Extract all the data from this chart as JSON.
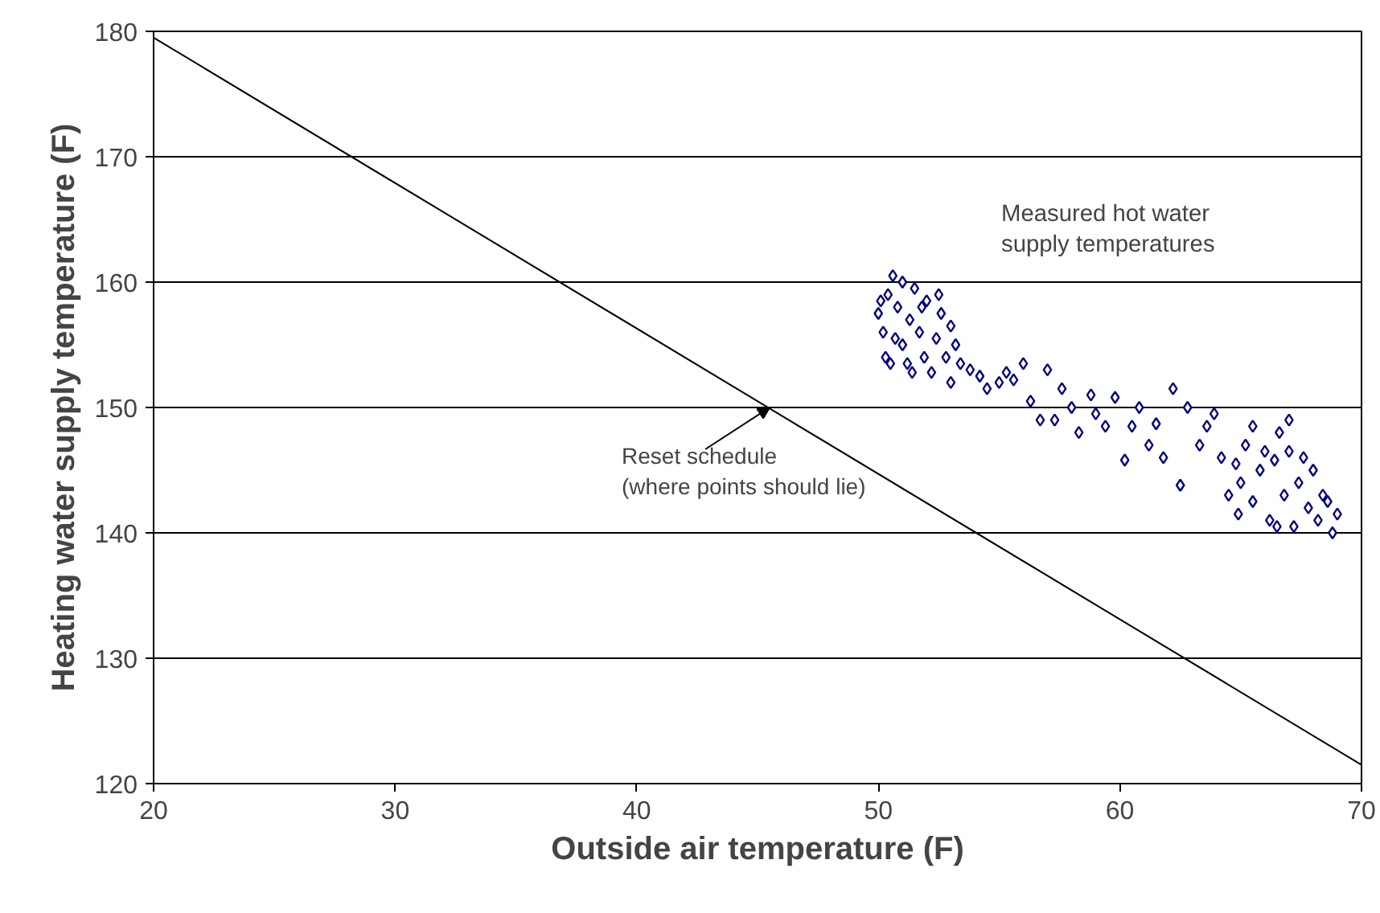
{
  "chart_data": {
    "type": "scatter",
    "xlabel": "Outside air temperature (F)",
    "ylabel": "Heating water supply temperature (F)",
    "xlim": [
      20,
      70
    ],
    "xticks": [
      20,
      30,
      40,
      50,
      60,
      70
    ],
    "ylim": [
      120,
      180
    ],
    "yticks": [
      120,
      130,
      140,
      150,
      160,
      170,
      180
    ],
    "grid": "y",
    "series": [
      {
        "color": "#000080",
        "marker": "diamond",
        "x": [
          50.0,
          50.2,
          50.3,
          50.4,
          50.6,
          50.8,
          51.0,
          51.2,
          51.3,
          51.5,
          51.7,
          51.9,
          52.0,
          52.2,
          52.4,
          52.6,
          52.8,
          53.0,
          53.2,
          53.4,
          50.5,
          51.0,
          51.8,
          52.5,
          53.0,
          50.1,
          50.7,
          51.4,
          53.8,
          54.2,
          54.5,
          55.0,
          55.3,
          55.6,
          56.0,
          56.3,
          56.7,
          57.0,
          57.3,
          57.6,
          58.0,
          58.3,
          58.8,
          59.0,
          59.4,
          59.8,
          60.2,
          60.5,
          60.8,
          61.2,
          61.5,
          61.8,
          62.2,
          62.5,
          62.8,
          63.3,
          63.6,
          63.9,
          64.2,
          64.5,
          64.8,
          65.0,
          65.2,
          65.5,
          65.8,
          66.0,
          66.2,
          66.4,
          66.6,
          66.8,
          67.0,
          67.2,
          67.4,
          67.6,
          67.8,
          68.0,
          68.2,
          68.4,
          68.6,
          68.8,
          69.0,
          65.5,
          67.0,
          66.5,
          64.9
        ],
        "values": [
          157.5,
          156,
          154,
          159,
          160.5,
          158,
          155,
          153.5,
          157,
          159.5,
          156,
          154,
          158.5,
          152.8,
          155.5,
          157.5,
          154,
          152,
          155,
          153.5,
          153.5,
          160,
          158,
          159,
          156.5,
          158.5,
          155.5,
          152.8,
          153,
          152.5,
          151.5,
          152,
          152.8,
          152.2,
          153.5,
          150.5,
          149,
          153,
          149,
          151.5,
          150,
          148,
          151,
          149.5,
          148.5,
          150.8,
          145.8,
          148.5,
          150,
          147,
          148.7,
          146,
          151.5,
          143.8,
          150,
          147,
          148.5,
          149.5,
          146,
          143,
          145.5,
          144,
          147,
          142.5,
          145,
          146.5,
          141,
          145.8,
          148,
          143,
          146.5,
          140.5,
          144,
          146,
          142,
          145,
          141,
          143,
          142.5,
          140,
          141.5,
          148.5,
          149,
          140.5,
          141.5
        ]
      },
      {
        "type": "line",
        "color": "#000000",
        "line_style": "solid",
        "x": [
          20,
          70
        ],
        "values": [
          179.5,
          121.5
        ]
      }
    ],
    "annotations": [
      "Measured hot water\nsupply temperatures",
      {
        "text": "Reset schedule\n(where points should lie)",
        "x": 45.5,
        "y": 150
      }
    ]
  }
}
